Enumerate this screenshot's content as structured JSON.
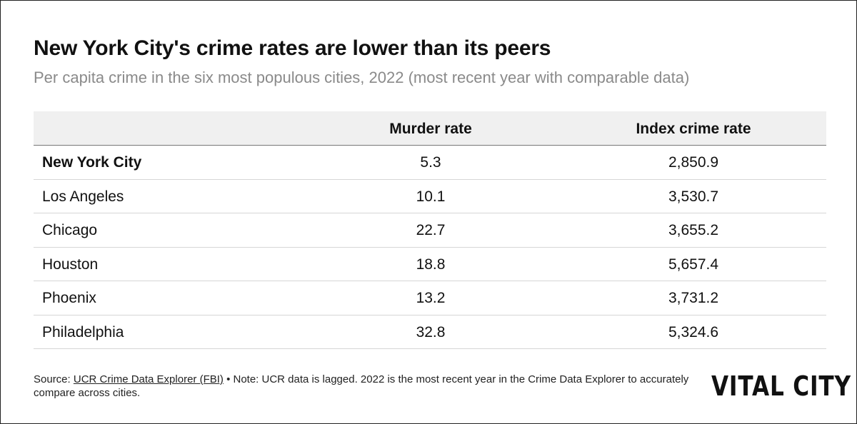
{
  "chart_data": {
    "type": "table",
    "title": "New York City's crime rates are lower than its peers",
    "subtitle": "Per capita crime in the six most populous cities, 2022 (most recent year with comparable data)",
    "columns": [
      "",
      "Murder rate",
      "Index crime rate"
    ],
    "rows": [
      {
        "city": "New York City",
        "murder_rate": "5.3",
        "index_crime_rate": "2,850.9",
        "highlight": true
      },
      {
        "city": "Los Angeles",
        "murder_rate": "10.1",
        "index_crime_rate": "3,530.7",
        "highlight": false
      },
      {
        "city": "Chicago",
        "murder_rate": "22.7",
        "index_crime_rate": "3,655.2",
        "highlight": false
      },
      {
        "city": "Houston",
        "murder_rate": "18.8",
        "index_crime_rate": "5,657.4",
        "highlight": false
      },
      {
        "city": "Phoenix",
        "murder_rate": "13.2",
        "index_crime_rate": "3,731.2",
        "highlight": false
      },
      {
        "city": "Philadelphia",
        "murder_rate": "32.8",
        "index_crime_rate": "5,324.6",
        "highlight": false
      }
    ]
  },
  "footer": {
    "source_prefix": "Source: ",
    "source_link": "UCR Crime Data Explorer (FBI)",
    "note": " • Note: UCR data is lagged. 2022 is the most recent year in the Crime Data Explorer to accurately compare across cities."
  },
  "logo": "VITAL CITY",
  "colors": {
    "header_bg": "#f0f0f0",
    "subtitle": "#8a8a8a",
    "text": "#111111"
  }
}
